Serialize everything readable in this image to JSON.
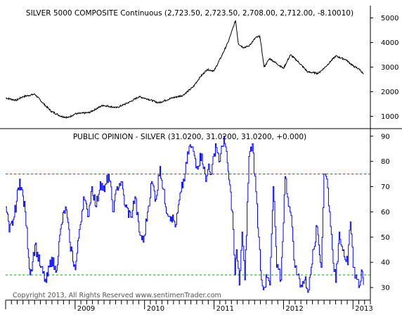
{
  "chart_data": [
    {
      "type": "line",
      "title": "SILVER 5000 COMPOSITE Continuous (2,723.50, 2,723.50, 2,708.00, 2,712.00, -8.10010)",
      "ylim": [
        500,
        5500
      ],
      "y_ticks": [
        1000,
        2000,
        3000,
        4000,
        5000
      ],
      "line_color": "#000000",
      "series": [
        {
          "x": [
            2008.0,
            2008.15,
            2008.25,
            2008.42,
            2008.55,
            2008.66,
            2008.8,
            2008.9,
            2009.0,
            2009.2,
            2009.4,
            2009.6,
            2009.8,
            2009.92,
            2010.05,
            2010.2,
            2010.4,
            2010.55,
            2010.7,
            2010.8,
            2010.9,
            2011.0,
            2011.1,
            2011.2,
            2011.31,
            2011.35,
            2011.42,
            2011.5,
            2011.6,
            2011.66,
            2011.72,
            2011.8,
            2011.9,
            2012.0,
            2012.1,
            2012.2,
            2012.35,
            2012.5,
            2012.6,
            2012.75,
            2012.9,
            2013.0,
            2013.1,
            2013.15
          ],
          "values": [
            1750,
            1650,
            1800,
            1900,
            1500,
            1200,
            1000,
            950,
            1100,
            1150,
            1450,
            1350,
            1600,
            1800,
            1700,
            1550,
            1750,
            1850,
            2200,
            2600,
            2900,
            2850,
            3400,
            4000,
            4900,
            3950,
            3800,
            3850,
            4200,
            4250,
            3000,
            3350,
            3150,
            2950,
            3500,
            3250,
            2800,
            2750,
            3000,
            3450,
            3300,
            3050,
            2900,
            2712
          ]
        }
      ]
    },
    {
      "type": "line",
      "title": "PUBLIC OPINION - SILVER (31.0200, 31.0200, 31.0200, +0.000)",
      "ylim": [
        25,
        93
      ],
      "y_ticks": [
        30,
        40,
        50,
        60,
        70,
        80,
        90
      ],
      "line_color": "#0000ff",
      "reference_lines": [
        {
          "value": 75,
          "color": "#ff0000"
        },
        {
          "value": 35,
          "color": "#00aa00"
        }
      ],
      "series": [
        {
          "x": [
            2008.0,
            2008.05,
            2008.12,
            2008.2,
            2008.28,
            2008.35,
            2008.42,
            2008.5,
            2008.58,
            2008.66,
            2008.72,
            2008.8,
            2008.86,
            2008.92,
            2009.0,
            2009.06,
            2009.12,
            2009.18,
            2009.24,
            2009.3,
            2009.36,
            2009.42,
            2009.48,
            2009.55,
            2009.6,
            2009.66,
            2009.72,
            2009.8,
            2009.86,
            2009.92,
            2009.98,
            2010.04,
            2010.1,
            2010.16,
            2010.22,
            2010.3,
            2010.38,
            2010.45,
            2010.52,
            2010.58,
            2010.64,
            2010.7,
            2010.75,
            2010.82,
            2010.88,
            2010.92,
            2010.96,
            2011.02,
            2011.08,
            2011.14,
            2011.2,
            2011.26,
            2011.3,
            2011.32,
            2011.36,
            2011.4,
            2011.44,
            2011.5,
            2011.55,
            2011.6,
            2011.64,
            2011.68,
            2011.72,
            2011.76,
            2011.8,
            2011.85,
            2011.9,
            2011.96,
            2012.02,
            2012.08,
            2012.12,
            2012.16,
            2012.2,
            2012.25,
            2012.3,
            2012.36,
            2012.42,
            2012.48,
            2012.54,
            2012.58,
            2012.62,
            2012.66,
            2012.7,
            2012.75,
            2012.8,
            2012.86,
            2012.92,
            2012.96,
            2013.0,
            2013.04,
            2013.08,
            2013.12,
            2013.15
          ],
          "values": [
            62,
            52,
            58,
            73,
            60,
            35,
            47,
            38,
            32,
            42,
            36,
            55,
            62,
            48,
            37,
            53,
            66,
            58,
            70,
            62,
            72,
            68,
            75,
            60,
            70,
            72,
            62,
            58,
            66,
            52,
            48,
            60,
            72,
            65,
            78,
            62,
            58,
            55,
            68,
            75,
            86,
            84,
            78,
            83,
            72,
            79,
            75,
            87,
            80,
            90,
            76,
            60,
            35,
            45,
            31,
            52,
            33,
            82,
            87,
            68,
            50,
            33,
            30,
            34,
            31,
            70,
            38,
            33,
            74,
            62,
            54,
            38,
            35,
            31,
            33,
            29,
            45,
            54,
            38,
            75,
            73,
            60,
            45,
            32,
            52,
            45,
            39,
            56,
            38,
            35,
            30,
            37,
            31
          ]
        }
      ]
    },
    {
      "type": "axis",
      "xlim": [
        2008.0,
        2013.25
      ],
      "x_tick_labels": [
        "2009",
        "2010",
        "2011",
        "2012",
        "2013"
      ],
      "x_tick_values": [
        2009,
        2010,
        2011,
        2012,
        2013
      ]
    }
  ],
  "copyright": "Copyright 2013, All Rights Reserved  www.sentimenTrader.com"
}
